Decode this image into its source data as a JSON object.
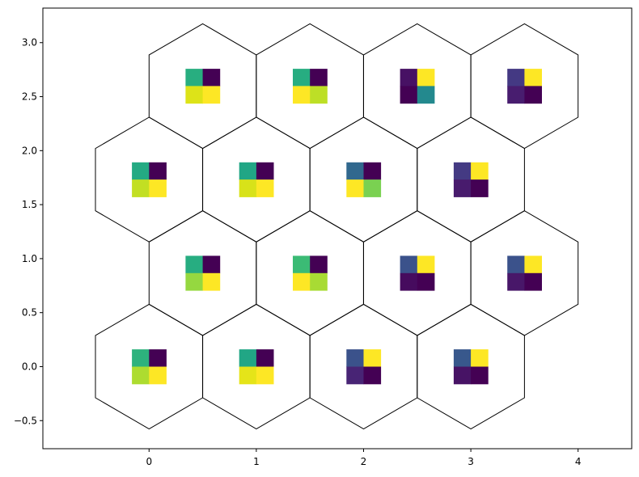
{
  "chart_data": {
    "type": "heatmap",
    "title": "",
    "xlabel": "",
    "ylabel": "",
    "xlim": [
      -0.99,
      4.5
    ],
    "ylim": [
      -0.76,
      3.32
    ],
    "xticks": [
      0,
      1,
      2,
      3,
      4
    ],
    "yticks": [
      -0.5,
      0.0,
      0.5,
      1.0,
      1.5,
      2.0,
      2.5,
      3.0
    ],
    "xtick_labels": [
      "0",
      "1",
      "2",
      "3",
      "4"
    ],
    "ytick_labels": [
      "−0.5",
      "0.0",
      "0.5",
      "1.0",
      "1.5",
      "2.0",
      "2.5",
      "3.0"
    ],
    "grid": false,
    "hex_radius": 0.577,
    "cell_half_width": 0.16,
    "cells": [
      {
        "x": 0,
        "y": 0,
        "colors": [
          "#2db27d",
          "#440154",
          "#addc30",
          "#fde725"
        ]
      },
      {
        "x": 1,
        "y": 0,
        "colors": [
          "#21a685",
          "#440154",
          "#e5e419",
          "#fde725"
        ]
      },
      {
        "x": 2,
        "y": 0,
        "colors": [
          "#3b528b",
          "#fde725",
          "#482475",
          "#440154"
        ]
      },
      {
        "x": 3,
        "y": 0,
        "colors": [
          "#38588c",
          "#fde725",
          "#471365",
          "#440154"
        ]
      },
      {
        "x": 0.5,
        "y": 0.866,
        "colors": [
          "#27ad81",
          "#440154",
          "#95d840",
          "#fde725"
        ]
      },
      {
        "x": 1.5,
        "y": 0.866,
        "colors": [
          "#3bbb75",
          "#440154",
          "#fde725",
          "#a8db34"
        ]
      },
      {
        "x": 2.5,
        "y": 0.866,
        "colors": [
          "#3b528b",
          "#fde725",
          "#460b5e",
          "#440154"
        ]
      },
      {
        "x": 3.5,
        "y": 0.866,
        "colors": [
          "#3b528b",
          "#fde725",
          "#481769",
          "#440154"
        ]
      },
      {
        "x": 0,
        "y": 1.732,
        "colors": [
          "#24aa83",
          "#440154",
          "#c2df23",
          "#fde725"
        ]
      },
      {
        "x": 1,
        "y": 1.732,
        "colors": [
          "#21a685",
          "#440154",
          "#d8e219",
          "#fde725"
        ]
      },
      {
        "x": 2,
        "y": 1.732,
        "colors": [
          "#31688e",
          "#440154",
          "#fde725",
          "#7ad151"
        ]
      },
      {
        "x": 3,
        "y": 1.732,
        "colors": [
          "#443a83",
          "#fde725",
          "#481b6d",
          "#440154"
        ]
      },
      {
        "x": 0.5,
        "y": 2.598,
        "colors": [
          "#28ae80",
          "#440154",
          "#dde318",
          "#fde725"
        ]
      },
      {
        "x": 1.5,
        "y": 2.598,
        "colors": [
          "#27ad81",
          "#440154",
          "#fde725",
          "#bddf26"
        ]
      },
      {
        "x": 2.5,
        "y": 2.598,
        "colors": [
          "#471164",
          "#fde725",
          "#440154",
          "#23898e"
        ]
      },
      {
        "x": 3.5,
        "y": 2.598,
        "colors": [
          "#443983",
          "#fde725",
          "#481d6f",
          "#440154"
        ]
      }
    ]
  }
}
